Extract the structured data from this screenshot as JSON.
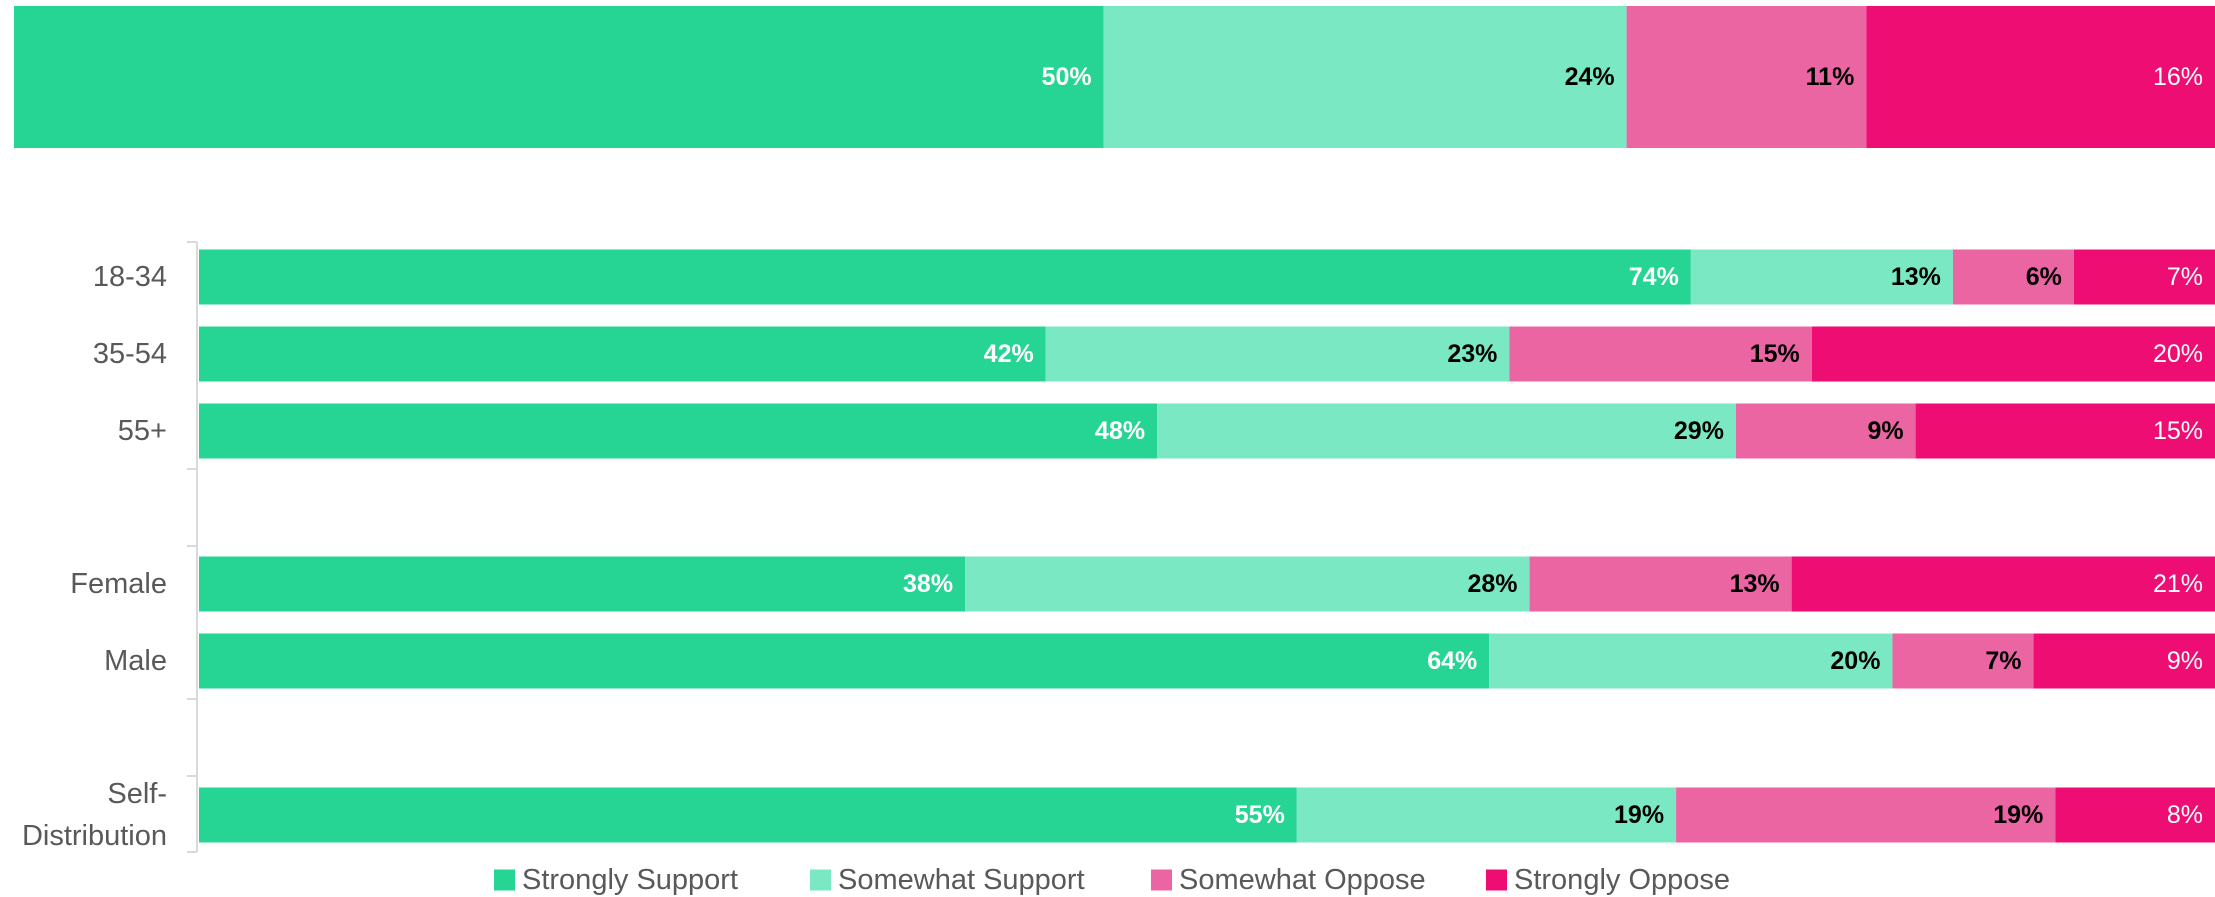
{
  "chart_data": [
    {
      "type": "bar",
      "orientation": "horizontal",
      "stacked": true,
      "categories": [
        ""
      ],
      "series": [
        {
          "name": "Strongly Support",
          "values": [
            50
          ],
          "labels": [
            "50%"
          ]
        },
        {
          "name": "Somewhat Support",
          "values": [
            24
          ],
          "labels": [
            "24%"
          ]
        },
        {
          "name": "Somewhat Oppose",
          "values": [
            11
          ],
          "labels": [
            "11%"
          ]
        },
        {
          "name": "Strongly Oppose",
          "values": [
            16
          ],
          "labels": [
            "16%"
          ]
        }
      ]
    },
    {
      "type": "bar",
      "orientation": "horizontal",
      "stacked": true,
      "categories": [
        "18-34",
        "35-54",
        "55+",
        "Female",
        "Male",
        "Self-\nDistribution"
      ],
      "series": [
        {
          "name": "Strongly Support",
          "values": [
            74,
            42,
            48,
            38,
            64,
            55
          ],
          "labels": [
            "74%",
            "42%",
            "48%",
            "38%",
            "64%",
            "55%"
          ]
        },
        {
          "name": "Somewhat Support",
          "values": [
            13,
            23,
            29,
            28,
            20,
            19
          ],
          "labels": [
            "13%",
            "23%",
            "29%",
            "28%",
            "20%",
            "19%"
          ]
        },
        {
          "name": "Somewhat Oppose",
          "values": [
            6,
            15,
            9,
            13,
            7,
            19
          ],
          "labels": [
            "6%",
            "15%",
            "9%",
            "13%",
            "7%",
            "19%"
          ]
        },
        {
          "name": "Strongly Oppose",
          "values": [
            7,
            20,
            15,
            21,
            9,
            8
          ],
          "labels": [
            "7%",
            "20%",
            "15%",
            "21%",
            "9%",
            "8%"
          ]
        }
      ],
      "legend": "bottom"
    }
  ],
  "colors": [
    "#26d593",
    "#7ae8c2",
    "#eb65a3",
    "#ed0d73"
  ],
  "label_colors": [
    "#ffffff",
    "#000000",
    "#000000",
    "#ffffff"
  ],
  "label_bold": [
    true,
    true,
    true,
    false
  ],
  "axis_color": "#d9d9d9",
  "category_label_color": "#595959"
}
